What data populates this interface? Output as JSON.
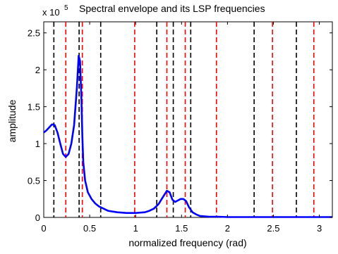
{
  "chart_data": {
    "type": "line",
    "title": "Spectral envelope and its LSP frequencies",
    "xlabel": "normalized frequency (rad)",
    "ylabel": "amplitude",
    "y_multiplier_label": "x 10",
    "y_multiplier_exponent": "5",
    "xlim": [
      0,
      3.14159
    ],
    "ylim": [
      0,
      2.65
    ],
    "y_scale_factor": 100000,
    "grid": false,
    "legend": "none",
    "x_ticks": [
      {
        "value": 0,
        "label": "0"
      },
      {
        "value": 0.5,
        "label": "0.5"
      },
      {
        "value": 1,
        "label": "1"
      },
      {
        "value": 1.5,
        "label": "1.5"
      },
      {
        "value": 2,
        "label": "2"
      },
      {
        "value": 2.5,
        "label": "2.5"
      },
      {
        "value": 3,
        "label": "3"
      }
    ],
    "y_ticks": [
      {
        "value": 0,
        "label": "0"
      },
      {
        "value": 0.5,
        "label": "0.5"
      },
      {
        "value": 1,
        "label": "1"
      },
      {
        "value": 1.5,
        "label": "1.5"
      },
      {
        "value": 2,
        "label": "2"
      },
      {
        "value": 2.5,
        "label": "2.5"
      }
    ],
    "series": [
      {
        "color": "#0000ff",
        "x": [
          0,
          0.03,
          0.06,
          0.09,
          0.12,
          0.15,
          0.18,
          0.21,
          0.24,
          0.27,
          0.3,
          0.33,
          0.36,
          0.38,
          0.395,
          0.41,
          0.42,
          0.43,
          0.45,
          0.48,
          0.52,
          0.56,
          0.6,
          0.65,
          0.7,
          0.8,
          0.9,
          1.0,
          1.1,
          1.15,
          1.2,
          1.25,
          1.3,
          1.34,
          1.37,
          1.4,
          1.43,
          1.46,
          1.49,
          1.52,
          1.55,
          1.58,
          1.62,
          1.66,
          1.7,
          1.8,
          1.9,
          2.0,
          2.2,
          2.4,
          2.6,
          2.8,
          3.0,
          3.14
        ],
        "y": [
          1.15,
          1.18,
          1.22,
          1.26,
          1.25,
          1.15,
          1.0,
          0.86,
          0.82,
          0.86,
          1.0,
          1.25,
          1.75,
          2.19,
          2.12,
          1.6,
          1.1,
          0.75,
          0.5,
          0.34,
          0.25,
          0.19,
          0.15,
          0.12,
          0.09,
          0.07,
          0.06,
          0.06,
          0.07,
          0.09,
          0.12,
          0.18,
          0.28,
          0.36,
          0.34,
          0.24,
          0.21,
          0.23,
          0.25,
          0.25,
          0.22,
          0.14,
          0.07,
          0.04,
          0.02,
          0.01,
          0.01,
          0.005,
          0.005,
          0.005,
          0.005,
          0.005,
          0.005,
          0.005
        ]
      }
    ],
    "vlines": [
      {
        "color": "#000000",
        "style": "dashed",
        "x": [
          0.11,
          0.385,
          0.62,
          1.23,
          1.41,
          1.6,
          2.29,
          2.75
        ]
      },
      {
        "color": "#ff0000",
        "style": "dashed",
        "x": [
          0.24,
          0.42,
          0.99,
          1.34,
          1.54,
          1.88,
          2.49,
          2.94
        ]
      }
    ]
  }
}
